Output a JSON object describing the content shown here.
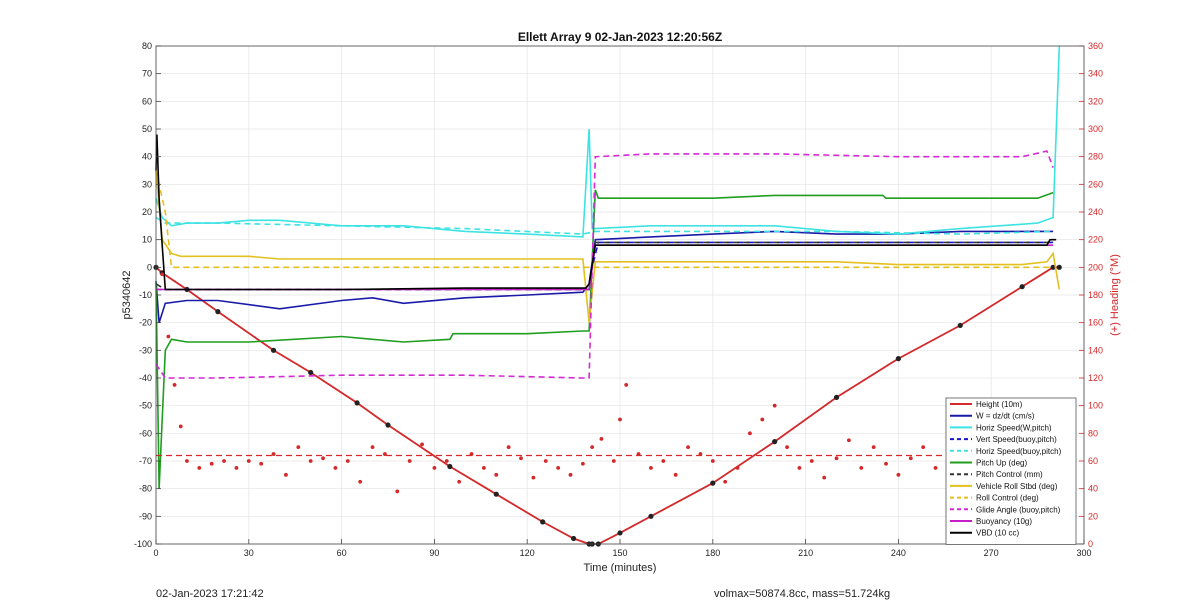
{
  "chart_data": {
    "type": "line",
    "title": "Ellett Array 9 02-Jan-2023 12:20:56Z",
    "xlabel": "Time (minutes)",
    "ylabel": "p5340642",
    "y2label": "(+) Heading (°M)",
    "xlim": [
      0,
      300
    ],
    "ylim": [
      -100,
      80
    ],
    "y2lim": [
      0,
      360
    ],
    "xticks": [
      0,
      30,
      60,
      90,
      120,
      150,
      180,
      210,
      240,
      270,
      300
    ],
    "yticks": [
      80,
      70,
      60,
      50,
      40,
      30,
      20,
      10,
      0,
      -10,
      -20,
      -30,
      -40,
      -50,
      -60,
      -70,
      -80,
      -90,
      -100
    ],
    "y2ticks": [
      360,
      340,
      320,
      300,
      280,
      260,
      240,
      220,
      200,
      180,
      160,
      140,
      120,
      100,
      80,
      60,
      40,
      20,
      0
    ],
    "grid": true,
    "legend_position": "bottom-right",
    "colors": {
      "height": "#d4282a",
      "w": "#1a1aa8",
      "horiz": "#3de3e3",
      "vert": "#1515d0",
      "pitch_up": "#1f9e1f",
      "roll": "#e3c01e",
      "glide": "#d42ad4",
      "buoyancy": "#c81ec8",
      "vbd": "#000000",
      "heading": "#d4282a",
      "right_axis": "#d4282a"
    },
    "series": [
      {
        "key": "height",
        "name": "Height (10m)",
        "style": "solid",
        "x": [
          0,
          2,
          10,
          20,
          38,
          50,
          65,
          75,
          95,
          110,
          125,
          135,
          140,
          141,
          143,
          150,
          160,
          180,
          200,
          220,
          240,
          260,
          280,
          290,
          292
        ],
        "y": [
          0,
          -2,
          -8,
          -16,
          -30,
          -38,
          -49,
          -57,
          -72,
          -82,
          -92,
          -98,
          -100,
          -100,
          -100,
          -96,
          -90,
          -78,
          -63,
          -47,
          -33,
          -21,
          -7,
          0,
          0
        ]
      },
      {
        "key": "w",
        "name": "W = dz/dt (cm/s)",
        "style": "solid",
        "x": [
          0,
          1,
          3,
          10,
          20,
          40,
          60,
          70,
          80,
          100,
          120,
          138,
          140,
          142,
          160,
          180,
          200,
          220,
          240,
          260,
          285,
          290
        ],
        "y": [
          -5,
          -20,
          -13,
          -12,
          -12,
          -15,
          -12,
          -11,
          -13,
          -11,
          -10,
          -9,
          -6,
          10,
          11,
          12,
          13,
          12,
          12,
          13,
          13,
          13
        ]
      },
      {
        "key": "horiz",
        "name": "Horiz Speed(W,pitch)",
        "style": "solid",
        "x": [
          0,
          2,
          5,
          10,
          20,
          30,
          40,
          60,
          80,
          100,
          120,
          138,
          140,
          141,
          142,
          160,
          180,
          200,
          220,
          240,
          260,
          285,
          290,
          292
        ],
        "y": [
          25,
          18,
          15,
          16,
          16,
          17,
          17,
          15,
          15,
          13,
          12,
          11,
          50,
          14,
          14,
          15,
          15,
          15,
          13,
          12,
          14,
          16,
          18,
          80
        ]
      },
      {
        "key": "vert",
        "name": "Vert Speed(buoy,pitch)",
        "style": "dashed",
        "x": [
          0,
          3,
          140,
          141,
          143,
          290
        ],
        "y": [
          -8,
          -8,
          -8,
          0,
          9,
          9
        ]
      },
      {
        "key": "horiz_bp",
        "name": "Horiz Speed(buoy,pitch)",
        "style": "dashed",
        "x": [
          0,
          3,
          20,
          60,
          100,
          138,
          142,
          180,
          220,
          260,
          290
        ],
        "y": [
          18,
          16,
          16,
          15,
          14,
          12,
          13,
          13,
          13,
          12,
          13
        ]
      },
      {
        "key": "pitch_up",
        "name": "Pitch Up (deg)",
        "style": "solid",
        "x": [
          0,
          1,
          2,
          3,
          5,
          10,
          30,
          60,
          70,
          80,
          95,
          96,
          120,
          138,
          140,
          142,
          143,
          160,
          180,
          200,
          220,
          235,
          236,
          260,
          285,
          290
        ],
        "y": [
          -5,
          -80,
          -55,
          -30,
          -26,
          -27,
          -27,
          -25,
          -26,
          -27,
          -26,
          -24,
          -24,
          -23,
          -23,
          28,
          25,
          25,
          25,
          26,
          26,
          26,
          25,
          25,
          25,
          27
        ]
      },
      {
        "key": "pitch_ctl",
        "name": "Pitch Control (mm)",
        "style": "dashed",
        "x": [
          0,
          3,
          140,
          142,
          290
        ],
        "y": [
          -6,
          -8,
          -8,
          9,
          9
        ]
      },
      {
        "key": "roll",
        "name": "Vehicle Roll Stbd (deg)",
        "style": "solid",
        "x": [
          0,
          2,
          5,
          8,
          15,
          30,
          40,
          60,
          80,
          100,
          120,
          138,
          140,
          142,
          160,
          180,
          200,
          220,
          240,
          260,
          280,
          288,
          290,
          292
        ],
        "y": [
          35,
          10,
          5,
          4,
          4,
          4,
          3,
          3,
          3,
          3,
          3,
          3,
          -20,
          2,
          2,
          2,
          2,
          2,
          1,
          1,
          1,
          2,
          5,
          -8
        ]
      },
      {
        "key": "roll_ctl",
        "name": "Roll Control (deg)",
        "style": "dashed",
        "x": [
          0,
          3,
          5,
          10,
          20,
          40,
          60,
          80,
          100,
          120,
          138,
          142,
          160,
          180,
          200,
          220,
          240,
          260,
          280,
          290
        ],
        "y": [
          35,
          20,
          0,
          0,
          0,
          0,
          0,
          0,
          0,
          0,
          0,
          0,
          0,
          0,
          0,
          0,
          0,
          0,
          0,
          0
        ]
      },
      {
        "key": "glide",
        "name": "Glide Angle (buoy,pitch)",
        "style": "dashed",
        "x": [
          0,
          3,
          20,
          60,
          100,
          138,
          140,
          142,
          160,
          200,
          240,
          280,
          288,
          290
        ],
        "y": [
          -35,
          -40,
          -40,
          -39,
          -39,
          -40,
          -40,
          40,
          41,
          41,
          40,
          40,
          42,
          36
        ]
      },
      {
        "key": "buoyancy",
        "name": "Buoyancy (10g)",
        "style": "solid",
        "x": [
          0,
          3,
          140,
          142,
          290
        ],
        "y": [
          -8,
          -8,
          -8,
          8,
          8
        ]
      },
      {
        "key": "vbd",
        "name": "VBD (10 cc)",
        "style": "solid",
        "x": [
          0,
          0.3,
          1,
          2,
          3,
          20,
          60,
          100,
          139,
          140,
          142,
          160,
          200,
          240,
          288,
          289,
          291
        ],
        "y": [
          35,
          48,
          25,
          8,
          -8,
          -8,
          -8,
          -7.5,
          -7.5,
          -6,
          8,
          8,
          8,
          8,
          8,
          10,
          10
        ]
      }
    ],
    "heading": {
      "name": "(+) Heading (°M)",
      "mean": 64,
      "x": [
        2,
        4,
        6,
        8,
        10,
        14,
        18,
        22,
        26,
        30,
        34,
        38,
        42,
        46,
        50,
        54,
        58,
        62,
        66,
        70,
        74,
        78,
        82,
        86,
        90,
        94,
        98,
        102,
        106,
        110,
        114,
        118,
        122,
        126,
        130,
        134,
        138,
        141,
        144,
        148,
        150,
        152,
        156,
        160,
        164,
        168,
        172,
        176,
        180,
        184,
        188,
        192,
        196,
        200,
        204,
        208,
        212,
        216,
        220,
        224,
        228,
        232,
        236,
        240,
        244,
        248,
        252,
        256,
        260,
        264,
        268,
        272,
        276,
        280,
        284,
        288
      ],
      "y": [
        195,
        150,
        115,
        85,
        60,
        55,
        58,
        60,
        55,
        60,
        58,
        65,
        50,
        70,
        60,
        62,
        55,
        60,
        45,
        70,
        65,
        38,
        60,
        72,
        55,
        60,
        45,
        65,
        55,
        50,
        70,
        62,
        48,
        60,
        55,
        50,
        58,
        70,
        76,
        60,
        90,
        115,
        65,
        55,
        60,
        50,
        70,
        65,
        60,
        45,
        55,
        80,
        90,
        100,
        70,
        55,
        60,
        48,
        62,
        75,
        55,
        70,
        58,
        50,
        62,
        70,
        55,
        64,
        60,
        50,
        62,
        58,
        65,
        55,
        62,
        60
      ]
    },
    "legend": [
      {
        "label": "Height (10m)",
        "key": "height",
        "style": "solid"
      },
      {
        "label": "W = dz/dt (cm/s)",
        "key": "w",
        "style": "solid"
      },
      {
        "label": "Horiz Speed(W,pitch)",
        "key": "horiz",
        "style": "solid"
      },
      {
        "label": "Vert Speed(buoy,pitch)",
        "key": "vert",
        "style": "dashed"
      },
      {
        "label": "Horiz Speed(buoy,pitch)",
        "key": "horiz_bp",
        "style": "dashed"
      },
      {
        "label": "Pitch Up (deg)",
        "key": "pitch_up",
        "style": "solid"
      },
      {
        "label": "Pitch Control (mm)",
        "key": "pitch_ctl",
        "style": "dashed"
      },
      {
        "label": "Vehicle Roll Stbd (deg)",
        "key": "roll",
        "style": "solid"
      },
      {
        "label": "Roll Control (deg)",
        "key": "roll_ctl",
        "style": "dashed"
      },
      {
        "label": "Glide Angle (buoy,pitch)",
        "key": "glide",
        "style": "dashed"
      },
      {
        "label": "Buoyancy (10g)",
        "key": "buoyancy",
        "style": "solid"
      },
      {
        "label": "VBD (10 cc)",
        "key": "vbd",
        "style": "solid"
      }
    ]
  },
  "footer": {
    "timestamp": "02-Jan-2023 17:21:42",
    "params": "volmax=50874.8cc, mass=51.724kg"
  }
}
